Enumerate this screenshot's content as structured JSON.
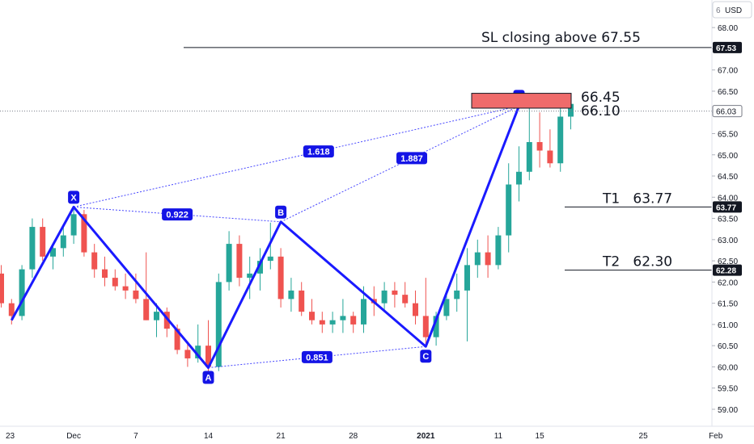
{
  "header": {
    "currency": "USD",
    "settings_glyph": "6"
  },
  "chart_data": {
    "type": "candlestick",
    "y_axis": {
      "min": 58.6,
      "max": 68.65,
      "ticks": [
        "59.00",
        "59.50",
        "60.00",
        "60.50",
        "61.00",
        "61.50",
        "62.00",
        "62.50",
        "63.00",
        "63.50",
        "64.00",
        "64.50",
        "65.00",
        "65.50",
        "66.00",
        "66.50",
        "67.00",
        "67.50",
        "68.00"
      ],
      "grid": false
    },
    "x_axis": {
      "ticks": [
        {
          "label": "23",
          "date_index": 0
        },
        {
          "label": "Dec",
          "date_index": 7
        },
        {
          "label": "7",
          "date_index": 13
        },
        {
          "label": "14",
          "date_index": 20
        },
        {
          "label": "21",
          "date_index": 27
        },
        {
          "label": "28",
          "date_index": 34
        },
        {
          "label": "2021",
          "date_index": 41
        },
        {
          "label": "11",
          "date_index": 48
        },
        {
          "label": "15",
          "date_index": 52
        },
        {
          "label": "25",
          "date_index": 62
        },
        {
          "label": "Feb",
          "date_index": 69
        }
      ]
    },
    "price_tags": [
      {
        "value": 67.53,
        "label": "67.53",
        "style": "dark"
      },
      {
        "value": 66.03,
        "label": "66.03",
        "style": "outline"
      },
      {
        "value": 63.77,
        "label": "63.77",
        "style": "dark"
      },
      {
        "value": 62.28,
        "label": "62.28",
        "style": "dark"
      }
    ],
    "candles": [
      [
        62.2,
        62.4,
        61.4,
        61.5
      ],
      [
        61.5,
        61.6,
        61.0,
        61.2
      ],
      [
        61.2,
        62.4,
        61.1,
        62.3
      ],
      [
        62.3,
        63.5,
        62.1,
        63.3
      ],
      [
        63.3,
        63.5,
        62.5,
        62.6
      ],
      [
        62.6,
        62.9,
        62.3,
        62.8
      ],
      [
        62.8,
        63.3,
        62.6,
        63.1
      ],
      [
        63.1,
        63.8,
        62.9,
        63.6
      ],
      [
        63.6,
        63.7,
        62.6,
        62.7
      ],
      [
        62.7,
        62.9,
        62.1,
        62.3
      ],
      [
        62.3,
        62.6,
        61.9,
        62.1
      ],
      [
        62.1,
        62.3,
        61.8,
        61.9
      ],
      [
        61.9,
        62.2,
        61.6,
        61.8
      ],
      [
        61.8,
        62.2,
        61.5,
        61.6
      ],
      [
        61.6,
        62.7,
        61.1,
        61.1
      ],
      [
        61.1,
        61.5,
        60.7,
        61.3
      ],
      [
        61.3,
        61.4,
        60.7,
        60.9
      ],
      [
        60.9,
        61.0,
        60.3,
        60.4
      ],
      [
        60.4,
        60.6,
        60.0,
        60.2
      ],
      [
        60.2,
        61.0,
        60.1,
        60.5
      ],
      [
        60.5,
        61.1,
        59.9,
        60.0
      ],
      [
        60.0,
        62.2,
        59.9,
        62.0
      ],
      [
        62.0,
        63.2,
        61.8,
        62.9
      ],
      [
        62.9,
        63.1,
        61.9,
        62.1
      ],
      [
        62.1,
        62.6,
        61.6,
        62.2
      ],
      [
        62.2,
        62.8,
        61.8,
        62.5
      ],
      [
        62.5,
        63.4,
        62.3,
        62.6
      ],
      [
        62.6,
        62.8,
        61.4,
        61.6
      ],
      [
        61.6,
        62.1,
        61.3,
        61.8
      ],
      [
        61.8,
        62.0,
        61.2,
        61.3
      ],
      [
        61.3,
        61.6,
        61.0,
        61.1
      ],
      [
        61.1,
        61.3,
        60.8,
        61.0
      ],
      [
        61.0,
        61.3,
        60.8,
        61.1
      ],
      [
        61.1,
        61.6,
        60.8,
        61.2
      ],
      [
        61.2,
        61.3,
        60.8,
        61.0
      ],
      [
        61.0,
        61.9,
        60.8,
        61.6
      ],
      [
        61.6,
        61.9,
        61.2,
        61.5
      ],
      [
        61.5,
        62.0,
        61.3,
        61.8
      ],
      [
        61.8,
        62.0,
        61.4,
        61.7
      ],
      [
        61.7,
        62.0,
        61.4,
        61.5
      ],
      [
        61.5,
        61.8,
        61.0,
        61.2
      ],
      [
        61.2,
        62.1,
        60.5,
        60.7
      ],
      [
        60.7,
        61.3,
        60.5,
        61.2
      ],
      [
        61.2,
        61.8,
        61.1,
        61.6
      ],
      [
        61.6,
        62.2,
        61.3,
        61.8
      ],
      [
        61.8,
        62.8,
        60.6,
        62.4
      ],
      [
        62.4,
        63.0,
        62.1,
        62.7
      ],
      [
        62.7,
        63.1,
        62.1,
        62.4
      ],
      [
        62.4,
        63.3,
        62.3,
        63.1
      ],
      [
        63.1,
        64.8,
        62.7,
        64.3
      ],
      [
        64.3,
        65.2,
        63.9,
        64.6
      ],
      [
        64.6,
        66.2,
        64.4,
        65.3
      ],
      [
        65.3,
        66.0,
        64.7,
        65.1
      ],
      [
        65.1,
        65.6,
        64.7,
        64.8
      ],
      [
        64.8,
        66.1,
        64.6,
        65.9
      ],
      [
        65.9,
        66.4,
        65.6,
        66.2
      ]
    ],
    "pattern": {
      "points": [
        {
          "label": "X",
          "candle": 7,
          "price": 63.77
        },
        {
          "label": "A",
          "candle": 20,
          "price": 59.98
        },
        {
          "label": "B",
          "candle": 27,
          "price": 63.42
        },
        {
          "label": "C",
          "candle": 41,
          "price": 60.48
        },
        {
          "label": "D",
          "candle": 50,
          "price": 66.15
        }
      ],
      "start": {
        "candle": 1,
        "price": 61.1
      },
      "ratios": [
        {
          "label": "0.922",
          "from": "X",
          "to": "B"
        },
        {
          "label": "0.851",
          "from": "A",
          "to": "C"
        },
        {
          "label": "1.618",
          "from": "X",
          "to": "D"
        },
        {
          "label": "1.887",
          "from": "B",
          "to": "D"
        }
      ]
    },
    "annotations": {
      "sl": {
        "text": "SL closing above 67.55",
        "value": 67.53
      },
      "zone": {
        "top": 66.45,
        "bottom": 66.1,
        "top_label": "66.45",
        "bottom_label": "66.10"
      },
      "targets": [
        {
          "text": "T1   63.77",
          "value": 63.77
        },
        {
          "text": "T2   62.30",
          "value": 62.28
        }
      ]
    },
    "colors": {
      "up": "#26a69a",
      "down": "#ef5350",
      "pattern": "#1a1aff",
      "marker": "#1414e6",
      "tag_dark": "#131722",
      "zone": "#ef6b6b"
    }
  }
}
